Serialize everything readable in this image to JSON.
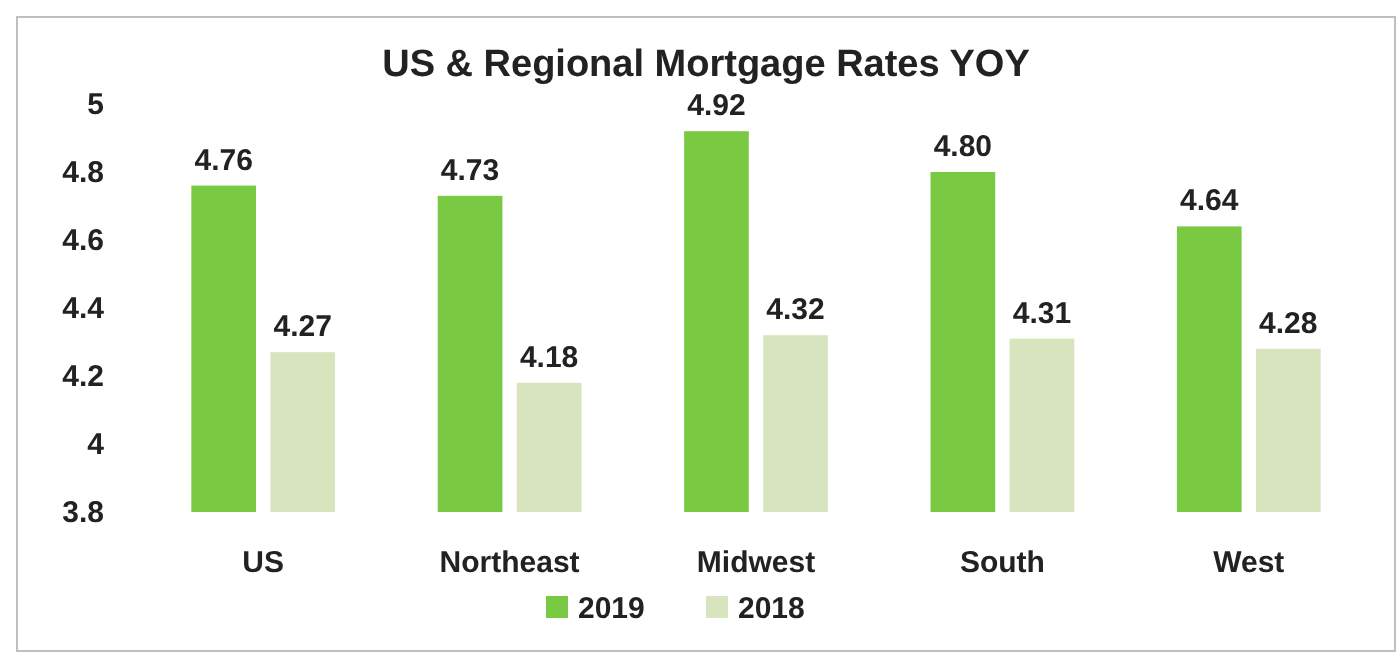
{
  "chart_data": {
    "type": "bar",
    "title": "US & Regional Mortgage Rates YOY",
    "categories": [
      "US",
      "Northeast",
      "Midwest",
      "South",
      "West"
    ],
    "series": [
      {
        "name": "2019",
        "color": "#7ac943",
        "values": [
          4.76,
          4.73,
          4.92,
          4.8,
          4.64
        ],
        "value_labels": [
          "4.76",
          "4.73",
          "4.92",
          "4.80",
          "4.64"
        ]
      },
      {
        "name": "2018",
        "color": "#d7e4bd",
        "values": [
          4.27,
          4.18,
          4.32,
          4.31,
          4.28
        ],
        "value_labels": [
          "4.27",
          "4.18",
          "4.32",
          "4.31",
          "4.28"
        ]
      }
    ],
    "ylim": [
      3.8,
      5
    ],
    "yticks": [
      3.8,
      4,
      4.2,
      4.4,
      4.6,
      4.8,
      5
    ],
    "grid": false,
    "legend": "bottom"
  }
}
